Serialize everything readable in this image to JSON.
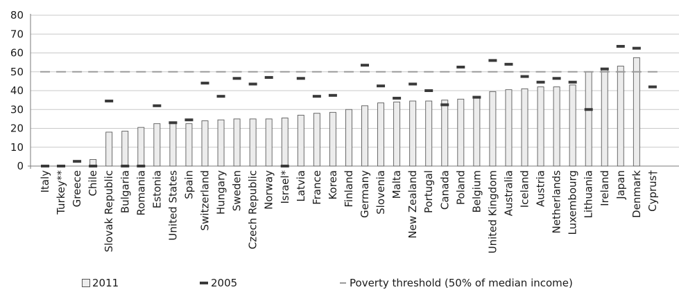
{
  "chart_data": {
    "type": "bar",
    "categories": [
      "Italy",
      "Turkey**",
      "Greece",
      "Chile",
      "Slovak Republic",
      "Bulgaria",
      "Romania",
      "Estonia",
      "United States",
      "Spain",
      "Switzerland",
      "Hungary",
      "Sweden",
      "Czech Republic",
      "Norway",
      "Israel*",
      "Latvia",
      "France",
      "Korea",
      "Finland",
      "Germany",
      "Slovenia",
      "Malta",
      "New Zealand",
      "Portugal",
      "Canada",
      "Poland",
      "Belgium",
      "United Kingdom",
      "Australia",
      "Iceland",
      "Austria",
      "Netherlands",
      "Luxembourg",
      "Lithuania",
      "Ireland",
      "Japan",
      "Denmark",
      "Cyprus†"
    ],
    "series": [
      {
        "name": "2011",
        "values": [
          0,
          0,
          0,
          3.5,
          18,
          18.5,
          20.5,
          22.5,
          23,
          22.5,
          24,
          24.5,
          25,
          25,
          25,
          25.5,
          27,
          28,
          28.5,
          30,
          32,
          33.5,
          34,
          34.5,
          34.5,
          35,
          35.5,
          36,
          39.5,
          40.5,
          41,
          42,
          42,
          43,
          50,
          51,
          53,
          57.5,
          null
        ]
      },
      {
        "name": "2005",
        "values": [
          0,
          0,
          2.5,
          0,
          34.5,
          0,
          0,
          32,
          23,
          24.5,
          44,
          37,
          46.5,
          43.5,
          47,
          0,
          46.5,
          37,
          37.5,
          null,
          53.5,
          42.5,
          36,
          43.5,
          40,
          32.5,
          52.5,
          36.5,
          56,
          54,
          47.5,
          44.5,
          46.5,
          44.5,
          30,
          51.5,
          63.5,
          62.5,
          42
        ]
      },
      {
        "name": "Poverty threshold (50% of median income)",
        "values": [
          50,
          50,
          50,
          50,
          50,
          50,
          50,
          50,
          50,
          50,
          50,
          50,
          50,
          50,
          50,
          50,
          50,
          50,
          50,
          50,
          50,
          50,
          50,
          50,
          50,
          50,
          50,
          50,
          50,
          50,
          50,
          50,
          50,
          50,
          50,
          50,
          50,
          50,
          50
        ]
      }
    ],
    "y_ticks": [
      0,
      10,
      20,
      30,
      40,
      50,
      60,
      70,
      80
    ],
    "ylim": [
      0,
      80
    ],
    "grid": true,
    "legend_position": "bottom",
    "colors": {
      "bar_fill": "#ececec",
      "bar_stroke": "#5a5a5a",
      "marker_2005": "#3a3a3a",
      "threshold": "#9a9a9a",
      "grid": "#c8c8c8"
    }
  },
  "legend": {
    "item_2011": "2011",
    "item_2005": "2005",
    "item_threshold": "Poverty threshold (50% of median income)"
  }
}
